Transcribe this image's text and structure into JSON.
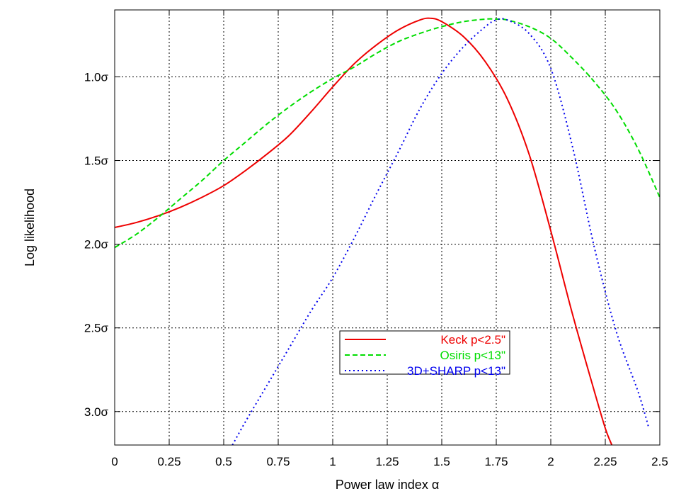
{
  "chart_data": {
    "type": "line",
    "title": "",
    "xlabel": "Power law index α",
    "ylabel": "Log likelihood",
    "xlim": [
      0,
      2.5
    ],
    "x_ticks": [
      0,
      0.25,
      0.5,
      0.75,
      1,
      1.25,
      1.5,
      1.75,
      2,
      2.25,
      2.5
    ],
    "x_tick_labels": [
      "0",
      "0.25",
      "0.5",
      "0.75",
      "1",
      "1.25",
      "1.5",
      "1.75",
      "2",
      "2.25",
      "2.5"
    ],
    "y_scale": "sigma (0σ at top, increasing downward)",
    "ylim": [
      0.6,
      3.2
    ],
    "y_ticks": [
      1.0,
      1.5,
      2.0,
      2.5,
      3.0
    ],
    "y_tick_labels": [
      "1.0σ",
      "1.5σ",
      "2.0σ",
      "2.5σ",
      "3.0σ"
    ],
    "grid": true,
    "legend_position": "lower-center",
    "series": [
      {
        "name": "Keck p<2.5\"",
        "color": "#ee0000",
        "dash": "solid",
        "x": [
          0,
          0.1,
          0.2,
          0.3,
          0.4,
          0.5,
          0.6,
          0.7,
          0.8,
          0.9,
          1.0,
          1.1,
          1.2,
          1.3,
          1.4,
          1.45,
          1.5,
          1.6,
          1.7,
          1.8,
          1.9,
          2.0,
          2.1,
          2.2,
          2.25,
          2.28
        ],
        "values": [
          1.9,
          1.87,
          1.83,
          1.78,
          1.72,
          1.65,
          1.56,
          1.46,
          1.35,
          1.21,
          1.06,
          0.92,
          0.81,
          0.72,
          0.66,
          0.65,
          0.67,
          0.76,
          0.91,
          1.13,
          1.46,
          1.92,
          2.42,
          2.88,
          3.1,
          3.2
        ]
      },
      {
        "name": "Osiris p<13\"",
        "color": "#00dd00",
        "dash": "dashed",
        "x": [
          0,
          0.1,
          0.2,
          0.3,
          0.4,
          0.5,
          0.6,
          0.7,
          0.8,
          0.9,
          1.0,
          1.1,
          1.2,
          1.3,
          1.4,
          1.5,
          1.6,
          1.7,
          1.75,
          1.8,
          1.9,
          2.0,
          2.1,
          2.2,
          2.3,
          2.4,
          2.5
        ],
        "values": [
          2.02,
          1.94,
          1.84,
          1.73,
          1.62,
          1.5,
          1.39,
          1.28,
          1.18,
          1.09,
          1.01,
          0.94,
          0.86,
          0.79,
          0.74,
          0.7,
          0.67,
          0.655,
          0.655,
          0.66,
          0.7,
          0.77,
          0.89,
          1.03,
          1.2,
          1.43,
          1.72
        ]
      },
      {
        "name": "3D+SHARP p<13\"",
        "color": "#0000ee",
        "dash": "dotted",
        "x": [
          0.54,
          0.6,
          0.7,
          0.8,
          0.9,
          1.0,
          1.1,
          1.2,
          1.3,
          1.4,
          1.5,
          1.6,
          1.7,
          1.75,
          1.8,
          1.9,
          2.0,
          2.1,
          2.2,
          2.3,
          2.4,
          2.45
        ],
        "values": [
          3.2,
          3.06,
          2.84,
          2.62,
          2.4,
          2.2,
          1.96,
          1.7,
          1.45,
          1.19,
          0.98,
          0.82,
          0.7,
          0.66,
          0.66,
          0.74,
          0.95,
          1.42,
          2.02,
          2.52,
          2.88,
          3.1
        ]
      }
    ]
  }
}
